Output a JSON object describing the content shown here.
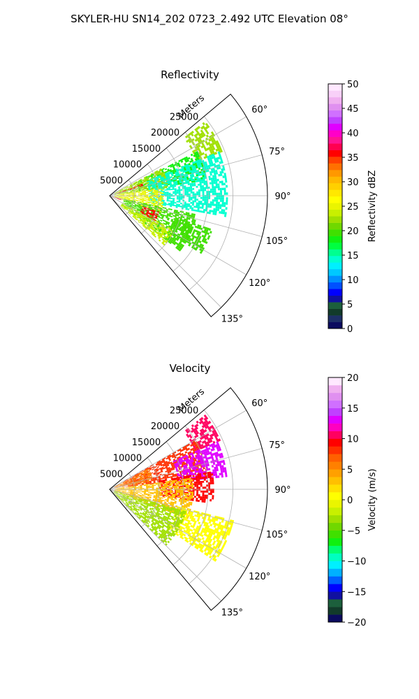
{
  "suptitle": "SKYLER-HU  SN14_202  0723_2.492 UTC Elevation 08°",
  "chart_data": [
    {
      "type": "heatmap",
      "projection": "polar-sector",
      "title": "Reflectivity",
      "radial_axis_label": "Meters",
      "radial_ticks": [
        5000,
        10000,
        15000,
        20000,
        25000
      ],
      "radial_tick_labels": [
        "5000",
        "10000",
        "15000",
        "20000",
        "25000"
      ],
      "radial_range": [
        0,
        32000
      ],
      "azimuth_range_deg": [
        50,
        140
      ],
      "azimuth_ticks_deg": [
        60,
        75,
        90,
        105,
        120,
        135
      ],
      "azimuth_tick_labels": [
        "60°",
        "75°",
        "90°",
        "105°",
        "120°",
        "135°"
      ],
      "grid": true,
      "colorbar": {
        "label": "Reflectivity dBZ",
        "range": [
          0,
          50
        ],
        "ticks": [
          0,
          5,
          10,
          15,
          20,
          25,
          30,
          35,
          40,
          45,
          50
        ],
        "tick_labels": [
          "0",
          "5",
          "10",
          "15",
          "20",
          "25",
          "30",
          "35",
          "40",
          "45",
          "50"
        ],
        "colors": [
          "#0b0b5e",
          "#1d2f66",
          "#123b2a",
          "#1c5f3c",
          "#1010a0",
          "#0000ff",
          "#0050ff",
          "#0090ff",
          "#00c8ff",
          "#00f0ff",
          "#00ffd0",
          "#00ff90",
          "#00ff40",
          "#10f010",
          "#40e000",
          "#70d800",
          "#a0e000",
          "#c8f000",
          "#eaf500",
          "#ffff00",
          "#ffe800",
          "#ffd000",
          "#ffb800",
          "#ff9800",
          "#ff7000",
          "#ff4000",
          "#ff0000",
          "#ff0050",
          "#ff1493",
          "#ff00c8",
          "#e000ff",
          "#c040ff",
          "#d070ff",
          "#e090f0",
          "#f0b0f0",
          "#f8d0f8",
          "#ffe8ff"
        ]
      },
      "regions": [
        {
          "value": 22,
          "az_range_deg": [
            52,
            68
          ],
          "r_range": [
            19000,
            24500
          ]
        },
        {
          "value": 18,
          "az_range_deg": [
            63,
            80
          ],
          "r_range": [
            6000,
            20000
          ]
        },
        {
          "value": 22,
          "az_range_deg": [
            62,
            82
          ],
          "r_range": [
            1000,
            12000
          ]
        },
        {
          "value": 14,
          "az_range_deg": [
            68,
            100
          ],
          "r_range": [
            8000,
            24000
          ]
        },
        {
          "value": 25,
          "az_range_deg": [
            82,
            108
          ],
          "r_range": [
            1000,
            11000
          ]
        },
        {
          "value": 20,
          "az_range_deg": [
            102,
            128
          ],
          "r_range": [
            3000,
            18000
          ]
        },
        {
          "value": 24,
          "az_range_deg": [
            118,
            132
          ],
          "r_range": [
            3000,
            15000
          ]
        },
        {
          "value": 20,
          "az_range_deg": [
            108,
            122
          ],
          "r_range": [
            14000,
            22000
          ]
        },
        {
          "value": 36,
          "az_range_deg": [
            108,
            118
          ],
          "r_range": [
            7000,
            10500
          ]
        },
        {
          "value": 36,
          "az_range_deg": [
            104,
            112
          ],
          "r_range": [
            500,
            2500
          ]
        },
        {
          "value": 36,
          "az_range_deg": [
            70,
            73
          ],
          "r_range": [
            1500,
            7000
          ]
        }
      ]
    },
    {
      "type": "heatmap",
      "projection": "polar-sector",
      "title": "Velocity",
      "radial_axis_label": "Meters",
      "radial_ticks": [
        5000,
        10000,
        15000,
        20000,
        25000
      ],
      "radial_tick_labels": [
        "5000",
        "10000",
        "15000",
        "20000",
        "25000"
      ],
      "radial_range": [
        0,
        32000
      ],
      "azimuth_range_deg": [
        50,
        140
      ],
      "azimuth_ticks_deg": [
        60,
        75,
        90,
        105,
        120,
        135
      ],
      "azimuth_tick_labels": [
        "60°",
        "75°",
        "90°",
        "105°",
        "120°",
        "135°"
      ],
      "grid": true,
      "colorbar": {
        "label": "Velocity (m/s)",
        "range": [
          -20,
          20
        ],
        "ticks": [
          -20,
          -15,
          -10,
          -5,
          0,
          5,
          10,
          15,
          20
        ],
        "tick_labels": [
          "−20",
          "−15",
          "−10",
          "−5",
          "0",
          "5",
          "10",
          "15",
          "20"
        ],
        "colors": [
          "#0b0b5e",
          "#123b2a",
          "#1c5f3c",
          "#1010a0",
          "#0000ff",
          "#0060ff",
          "#00b0ff",
          "#00f0ff",
          "#00ffc0",
          "#00ff70",
          "#10f010",
          "#40e000",
          "#70d800",
          "#a0e000",
          "#c8f000",
          "#eaf500",
          "#ffff00",
          "#ffe000",
          "#ffc000",
          "#ffa000",
          "#ff8000",
          "#ff6000",
          "#ff3000",
          "#ff0000",
          "#ff0060",
          "#ff00c0",
          "#e000ff",
          "#c040ff",
          "#d070ff",
          "#e090f0",
          "#f0b0f0",
          "#ffe8ff"
        ]
      },
      "regions": [
        {
          "value": 10,
          "az_range_deg": [
            52,
            66
          ],
          "r_range": [
            19000,
            24500
          ]
        },
        {
          "value": 8,
          "az_range_deg": [
            60,
            82
          ],
          "r_range": [
            3000,
            20000
          ]
        },
        {
          "value": 13,
          "az_range_deg": [
            66,
            84
          ],
          "r_range": [
            14000,
            24000
          ]
        },
        {
          "value": 6,
          "az_range_deg": [
            62,
            80
          ],
          "r_range": [
            1000,
            9000
          ]
        },
        {
          "value": 9,
          "az_range_deg": [
            80,
            98
          ],
          "r_range": [
            10000,
            21000
          ]
        },
        {
          "value": 3,
          "az_range_deg": [
            82,
            110
          ],
          "r_range": [
            1000,
            17000
          ]
        },
        {
          "value": 1,
          "az_range_deg": [
            104,
            124
          ],
          "r_range": [
            14000,
            26000
          ]
        },
        {
          "value": -3,
          "az_range_deg": [
            106,
            134
          ],
          "r_range": [
            1000,
            16000
          ]
        }
      ]
    }
  ]
}
